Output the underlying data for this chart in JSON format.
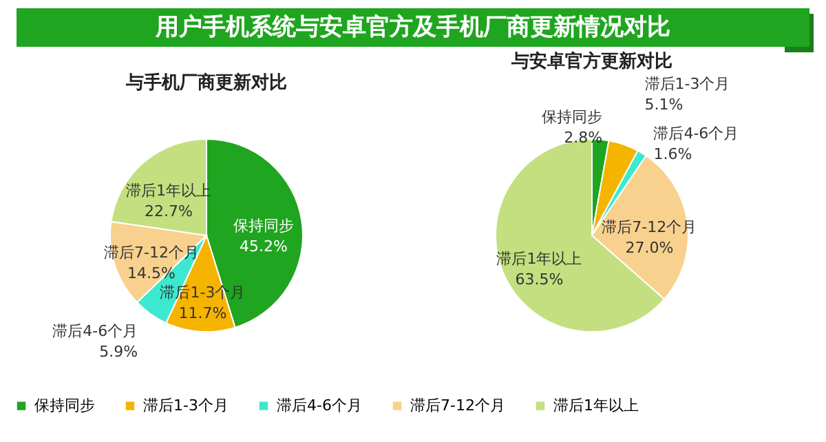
{
  "chart_data": [
    {
      "type": "pie",
      "title": "用户手机系统与安卓官方及手机厂商更新情况对比",
      "subtitle": "与手机厂商更新对比",
      "categories": [
        "保持同步",
        "滞后1-3个月",
        "滞后4-6个月",
        "滞后7-12个月",
        "滞后1年以上"
      ],
      "values": [
        45.2,
        11.7,
        5.9,
        14.5,
        22.7
      ],
      "colors": [
        "#1fa51f",
        "#f5b400",
        "#3de8d0",
        "#f8d18e",
        "#c3df7f"
      ],
      "value_labels": [
        "45.2%",
        "11.7%",
        "5.9%",
        "14.5%",
        "22.7%"
      ],
      "legend": "bottom"
    },
    {
      "type": "pie",
      "subtitle": "与安卓官方更新对比",
      "categories": [
        "保持同步",
        "滞后1-3个月",
        "滞后4-6个月",
        "滞后7-12个月",
        "滞后1年以上"
      ],
      "values": [
        2.8,
        5.1,
        1.6,
        27.0,
        63.5
      ],
      "colors": [
        "#1fa51f",
        "#f5b400",
        "#3de8d0",
        "#f8d18e",
        "#c3df7f"
      ],
      "value_labels": [
        "2.8%",
        "5.1%",
        "1.6%",
        "27.0%",
        "63.5%"
      ]
    }
  ]
}
